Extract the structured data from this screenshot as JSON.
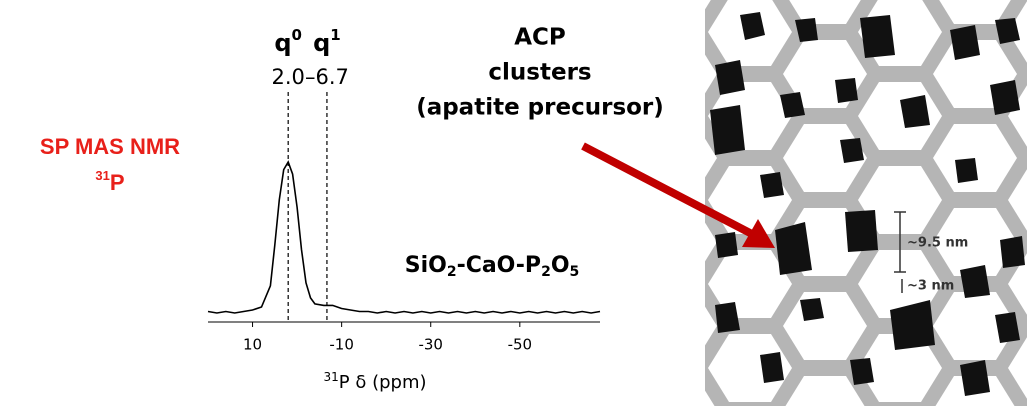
{
  "chart_data": {
    "type": "line",
    "title": "SP MAS NMR",
    "title_sup": "31",
    "title_nucleus": "P",
    "title_color": "#e8201a",
    "x_label": {
      "sup": "31",
      "text": "P δ (ppm)"
    },
    "x": [
      20,
      18,
      16,
      14,
      12,
      10,
      8,
      6,
      5,
      4,
      3,
      2,
      1,
      0,
      -1,
      -2,
      -3,
      -4,
      -6,
      -8,
      -10,
      -12,
      -14,
      -16,
      -18,
      -20,
      -22,
      -24,
      -26,
      -28,
      -30,
      -32,
      -34,
      -36,
      -38,
      -40,
      -42,
      -44,
      -46,
      -48,
      -50,
      -52,
      -54,
      -56,
      -58,
      -60,
      -62,
      -64,
      -66,
      -68
    ],
    "values": [
      1,
      0,
      1,
      0,
      1,
      2,
      4,
      18,
      45,
      75,
      95,
      100,
      92,
      70,
      42,
      20,
      10,
      6,
      5,
      5,
      3,
      2,
      1,
      1,
      0,
      1,
      0,
      1,
      0,
      1,
      0,
      1,
      0,
      1,
      0,
      1,
      0,
      1,
      0,
      1,
      0,
      1,
      0,
      1,
      0,
      1,
      0,
      1,
      0,
      1
    ],
    "color": "#000000",
    "xlim": [
      20,
      -68
    ],
    "ylim": [
      0,
      100
    ],
    "xticks": [
      10,
      -10,
      -30,
      -50
    ],
    "annotations": [
      {
        "name": "q",
        "sup": "0",
        "x": 2.0,
        "label": "2.0"
      },
      {
        "name": "q",
        "sup": "1",
        "x": -6.7,
        "label": "–6.7"
      }
    ],
    "composition": [
      "SiO",
      "2",
      "-CaO-P",
      "2",
      "O",
      "5"
    ]
  },
  "schematic": {
    "label_lines": [
      "ACP",
      "clusters",
      "(apatite precursor)"
    ],
    "dimensions": [
      "~9.5 nm",
      "~3 nm"
    ],
    "arrow_color": "#c00000"
  }
}
